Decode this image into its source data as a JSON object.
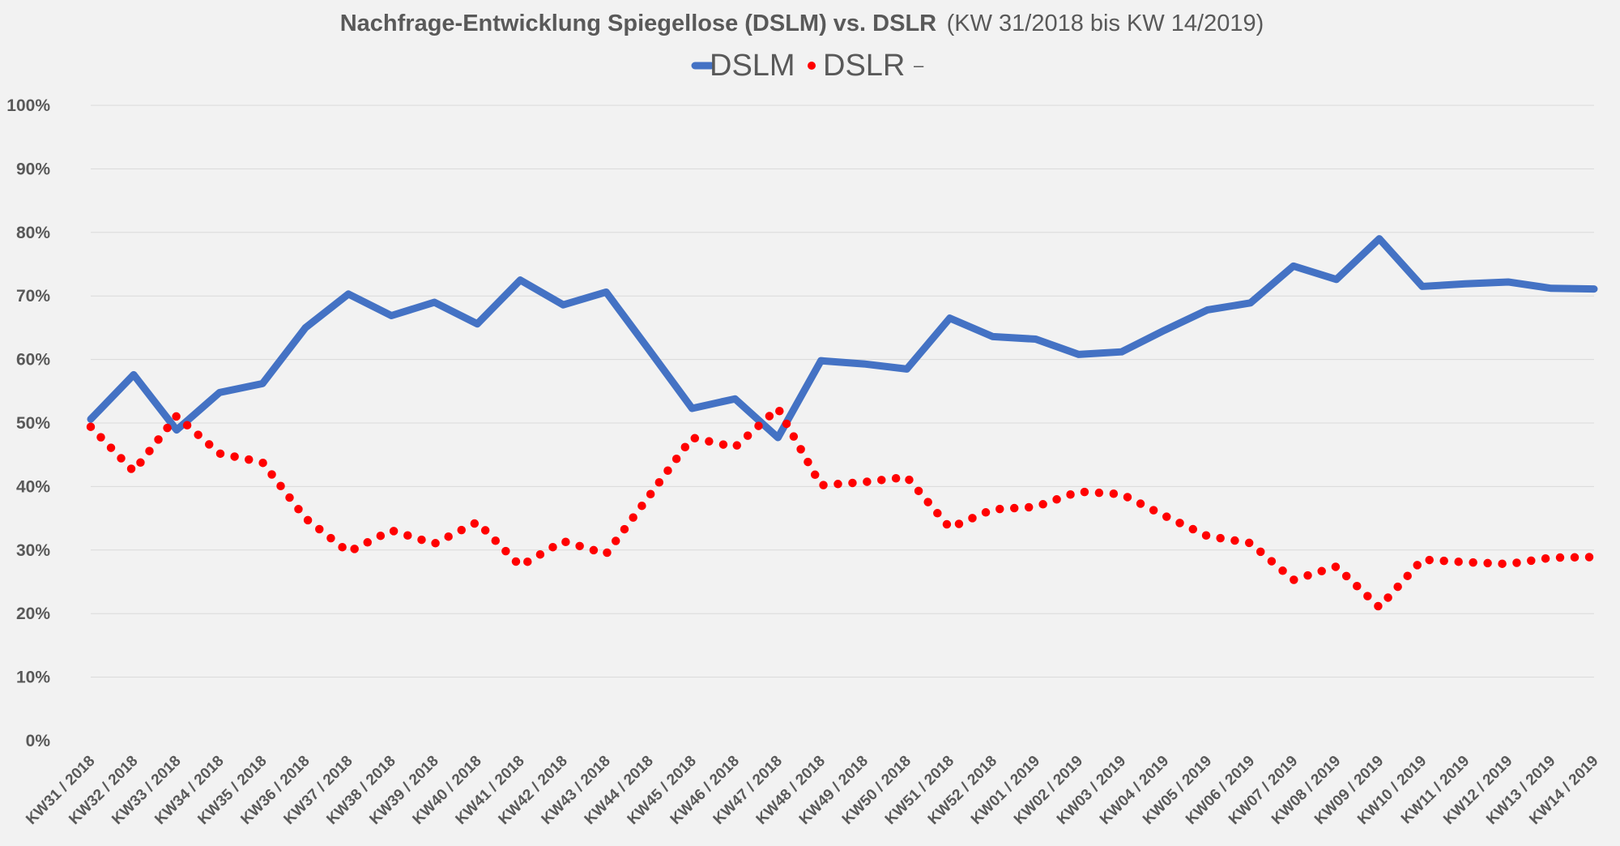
{
  "chart_data": {
    "type": "line",
    "title": "Nachfrage-Entwicklung Spiegellose (DSLM) vs. DSLR",
    "subtitle": "(KW 31/2018 bis KW 14/2019)",
    "xlabel": "",
    "ylabel": "",
    "ylim": [
      0,
      100
    ],
    "y_ticks": [
      0,
      10,
      20,
      30,
      40,
      50,
      60,
      70,
      80,
      90,
      100
    ],
    "y_tick_suffix": "%",
    "grid": true,
    "legend_position": "top-center",
    "legend_trailing_mark": "–",
    "categories": [
      "KW31 / 2018",
      "KW32 / 2018",
      "KW33 / 2018",
      "KW34 / 2018",
      "KW35 / 2018",
      "KW36 / 2018",
      "KW37 / 2018",
      "KW38 / 2018",
      "KW39 / 2018",
      "KW40 / 2018",
      "KW41 / 2018",
      "KW42 / 2018",
      "KW43 / 2018",
      "KW44 / 2018",
      "KW45 / 2018",
      "KW46 / 2018",
      "KW47 / 2018",
      "KW48 / 2018",
      "KW49 / 2018",
      "KW50 / 2018",
      "KW51 / 2018",
      "KW52 / 2018",
      "KW01 / 2019",
      "KW02 / 2019",
      "KW03 / 2019",
      "KW04 / 2019",
      "KW05 / 2019",
      "KW06 / 2019",
      "KW07 / 2019",
      "KW08 / 2019",
      "KW09 / 2019",
      "KW10 / 2019",
      "KW11 / 2019",
      "KW12 / 2019",
      "KW13 / 2019",
      "KW14 / 2019"
    ],
    "series": [
      {
        "name": "DSLM",
        "color": "#4472c4",
        "style": "solid",
        "values": [
          50.6,
          57.6,
          48.9,
          54.8,
          56.2,
          65.0,
          70.3,
          66.9,
          69.0,
          65.6,
          72.5,
          68.6,
          70.6,
          61.5,
          52.3,
          53.8,
          47.7,
          59.8,
          59.3,
          58.5,
          66.5,
          63.6,
          63.2,
          60.8,
          61.2,
          64.6,
          67.8,
          68.9,
          74.7,
          72.6,
          79.0,
          71.5,
          71.9,
          72.2,
          71.2,
          71.1
        ]
      },
      {
        "name": "DSLR",
        "color": "#ff0000",
        "style": "dotted",
        "values": [
          49.4,
          42.4,
          51.1,
          45.2,
          43.8,
          35.0,
          29.7,
          33.1,
          31.0,
          34.4,
          27.5,
          31.4,
          29.4,
          38.5,
          47.7,
          46.2,
          52.3,
          40.2,
          40.7,
          41.5,
          33.5,
          36.4,
          36.8,
          39.2,
          38.8,
          35.4,
          32.2,
          31.1,
          25.3,
          27.4,
          21.0,
          28.5,
          28.1,
          27.8,
          28.8,
          28.9
        ]
      }
    ]
  }
}
